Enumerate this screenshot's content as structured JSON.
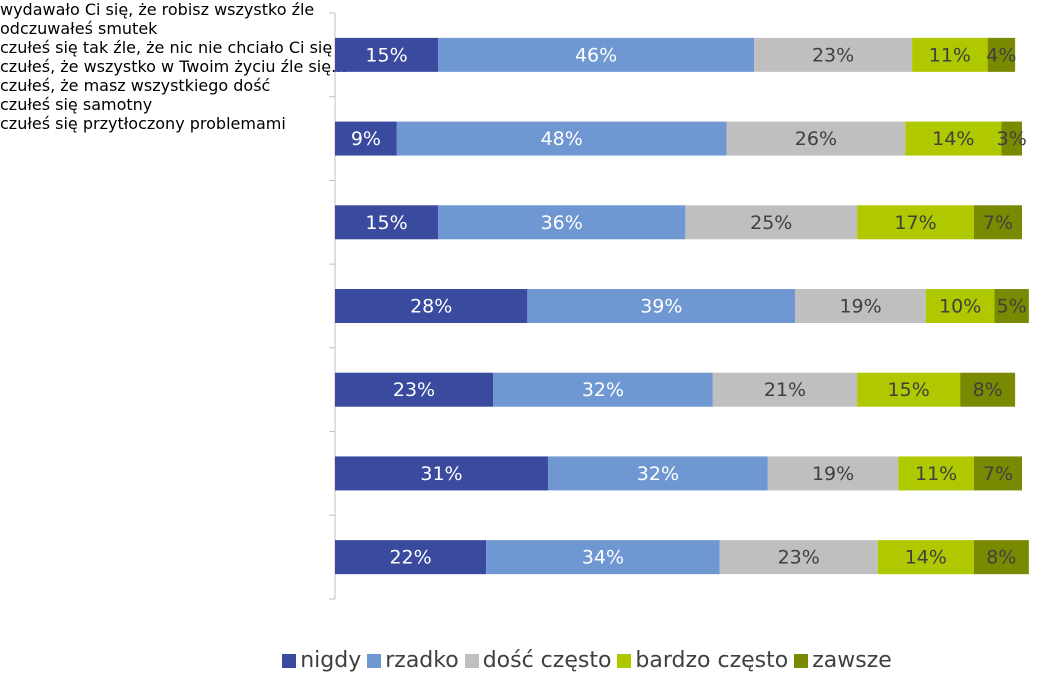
{
  "chart_data": {
    "type": "stacked_barh",
    "categories": [
      "wydawało Ci się, że\nrobisz wszystko źle",
      "odczuwałeś smutek",
      "czułeś się tak źle, że nic\nnie chciało Ci się robić",
      "czułeś, że wszystko w\nTwoim życiu źle się…",
      "czułeś, że masz\nwszystkiego dość",
      "czułeś się samotny",
      "czułeś się przytłoczony\nproblemami"
    ],
    "series": [
      {
        "name": "nigdy",
        "color": "#394a9f",
        "label_color": "#ffffff",
        "values": [
          15,
          9,
          15,
          28,
          23,
          31,
          22
        ],
        "value_labels": [
          "15%",
          "9%",
          "15%",
          "28%",
          "23%",
          "31%",
          "22%"
        ]
      },
      {
        "name": "rzadko",
        "color": "#6f97d2",
        "label_color": "#ffffff",
        "values": [
          46,
          48,
          36,
          39,
          32,
          32,
          34
        ],
        "value_labels": [
          "46%",
          "48%",
          "36%",
          "39%",
          "32%",
          "32%",
          "34%"
        ]
      },
      {
        "name": "dość często",
        "color": "#bfbfbf",
        "label_color": "#404040",
        "values": [
          23,
          26,
          25,
          19,
          21,
          19,
          23
        ],
        "value_labels": [
          "23%",
          "26%",
          "25%",
          "19%",
          "21%",
          "19%",
          "23%"
        ]
      },
      {
        "name": "bardzo często",
        "color": "#afc800",
        "label_color": "#404040",
        "values": [
          11,
          14,
          17,
          10,
          15,
          11,
          14
        ],
        "value_labels": [
          "11%",
          "14%",
          "17%",
          "10%",
          "15%",
          "11%",
          "14%"
        ]
      },
      {
        "name": "zawsze",
        "color": "#7a8a00",
        "label_color": "#404040",
        "values": [
          4,
          3,
          7,
          5,
          8,
          7,
          8
        ],
        "value_labels": [
          "4%",
          "3%",
          "7%",
          "5%",
          "8%",
          "7%",
          "8%"
        ]
      }
    ],
    "xlim": [
      0,
      100
    ],
    "legend": "bottom"
  }
}
